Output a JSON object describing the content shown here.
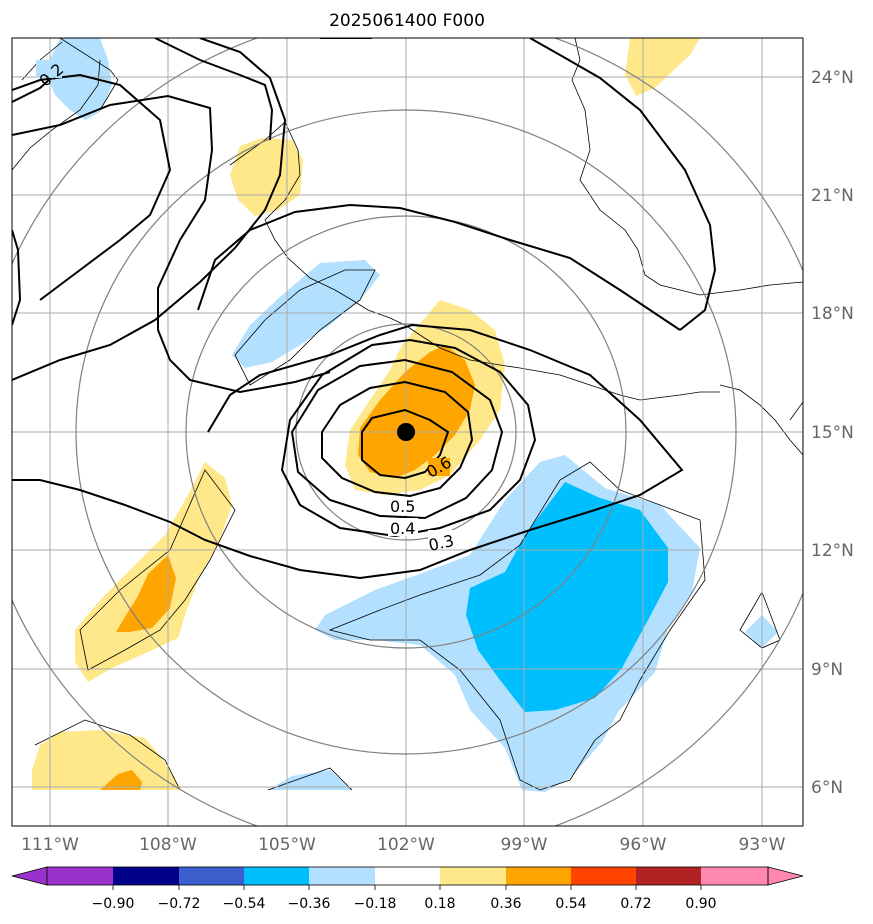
{
  "title": "2025061400 F000",
  "map": {
    "lon_labels": [
      "111°W",
      "108°W",
      "105°W",
      "102°W",
      "99°W",
      "96°W",
      "93°W"
    ],
    "lat_labels": [
      "24°N",
      "21°N",
      "18°N",
      "15°N",
      "12°N",
      "9°N",
      "6°N"
    ],
    "extent": {
      "lon_min": "112°W",
      "lon_max": "92°W",
      "lat_min": "5°N",
      "lat_max": "25°N"
    },
    "center": {
      "lon": "102°W",
      "lat": "15°N"
    },
    "contour_labels": [
      "0.2",
      "0.3",
      "0.4",
      "0.5",
      "0.6"
    ],
    "colors": {
      "neg_light": "#b3e0ff",
      "neg_mid": "#00bfff",
      "pos_light": "#ffe88a",
      "pos_mid": "#ffa500",
      "grid": "#aaaaaa",
      "range_rings": "#808080"
    }
  },
  "colorbar": {
    "ticks": [
      "−0.90",
      "−0.72",
      "−0.54",
      "−0.36",
      "−0.18",
      "0.18",
      "0.36",
      "0.54",
      "0.72",
      "0.90"
    ],
    "colors": [
      "#9932cc",
      "#00008b",
      "#3b5fcd",
      "#00bfff",
      "#b3e0ff",
      "#ffffff",
      "#ffe88a",
      "#ffa500",
      "#ff4500",
      "#b22222",
      "#ff88b0"
    ]
  }
}
